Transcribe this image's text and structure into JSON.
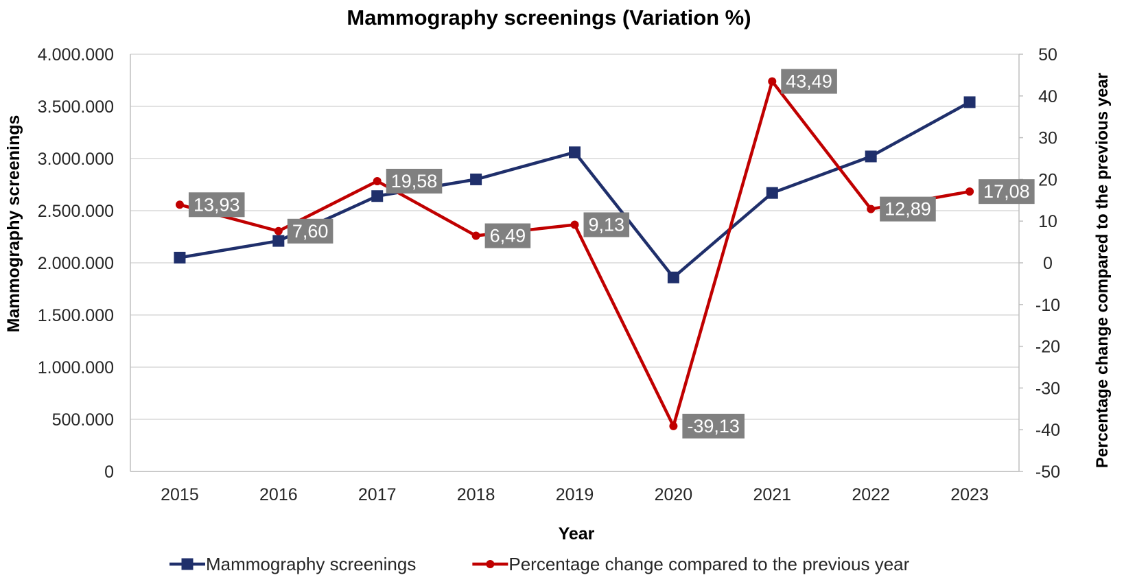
{
  "chart_data": {
    "type": "line",
    "title": "Mammography screenings (Variation %)",
    "xlabel": "Year",
    "ylabel": "Mammography screenings",
    "y2label": "Percentage change compared to the previous year",
    "categories": [
      "2015",
      "2016",
      "2017",
      "2018",
      "2019",
      "2020",
      "2021",
      "2022",
      "2023"
    ],
    "ylim": [
      0,
      4000000
    ],
    "y2lim": [
      -50,
      50
    ],
    "yticks": [
      {
        "value": 0,
        "label": "0"
      },
      {
        "value": 500000,
        "label": "500.000"
      },
      {
        "value": 1000000,
        "label": "1.000.000"
      },
      {
        "value": 1500000,
        "label": "1.500.000"
      },
      {
        "value": 2000000,
        "label": "2.000.000"
      },
      {
        "value": 2500000,
        "label": "2.500.000"
      },
      {
        "value": 3000000,
        "label": "3.000.000"
      },
      {
        "value": 3500000,
        "label": "3.500.000"
      },
      {
        "value": 4000000,
        "label": "4.000.000"
      }
    ],
    "y2ticks": [
      {
        "value": -50,
        "label": "-50"
      },
      {
        "value": -40,
        "label": "-40"
      },
      {
        "value": -30,
        "label": "-30"
      },
      {
        "value": -20,
        "label": "-20"
      },
      {
        "value": -10,
        "label": "-10"
      },
      {
        "value": 0,
        "label": "0"
      },
      {
        "value": 10,
        "label": "10"
      },
      {
        "value": 20,
        "label": "20"
      },
      {
        "value": 30,
        "label": "30"
      },
      {
        "value": 40,
        "label": "40"
      },
      {
        "value": 50,
        "label": "50"
      }
    ],
    "grid": true,
    "legend_position": "bottom",
    "series": [
      {
        "name": "Mammography screenings",
        "axis": "left",
        "color": "#1f2f6b",
        "marker": "square",
        "values": [
          2050000,
          2210000,
          2640000,
          2800000,
          3060000,
          1860000,
          2670000,
          3020000,
          3540000
        ]
      },
      {
        "name": "Percentage change compared to the previous year",
        "axis": "right",
        "color": "#c00000",
        "marker": "circle",
        "values": [
          13.93,
          7.6,
          19.58,
          6.49,
          9.13,
          -39.13,
          43.49,
          12.89,
          17.08
        ],
        "labels": [
          "13,93",
          "7,60",
          "19,58",
          "6,49",
          "9,13",
          "-39,13",
          "43,49",
          "12,89",
          "17,08"
        ]
      }
    ]
  }
}
